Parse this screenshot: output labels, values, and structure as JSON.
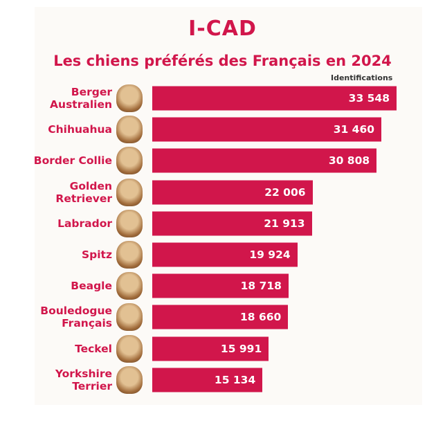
{
  "logo": "I-CAD",
  "chart_data": {
    "type": "bar",
    "orientation": "horizontal",
    "title": "Les chiens préférés des Français en 2024",
    "value_axis_label": "Identifications",
    "categories": [
      "Berger Australien",
      "Chihuahua",
      "Border Collie",
      "Golden Retriever",
      "Labrador",
      "Spitz",
      "Beagle",
      "Bouledogue Français",
      "Teckel",
      "Yorkshire Terrier"
    ],
    "values": [
      33548,
      31460,
      30808,
      22006,
      21913,
      19924,
      18718,
      18660,
      15991,
      15134
    ],
    "value_labels": [
      "33 548",
      "31 460",
      "30 808",
      "22 006",
      "21 913",
      "19 924",
      "18 718",
      "18 660",
      "15 991",
      "15 134"
    ],
    "color": "#d1164b"
  }
}
